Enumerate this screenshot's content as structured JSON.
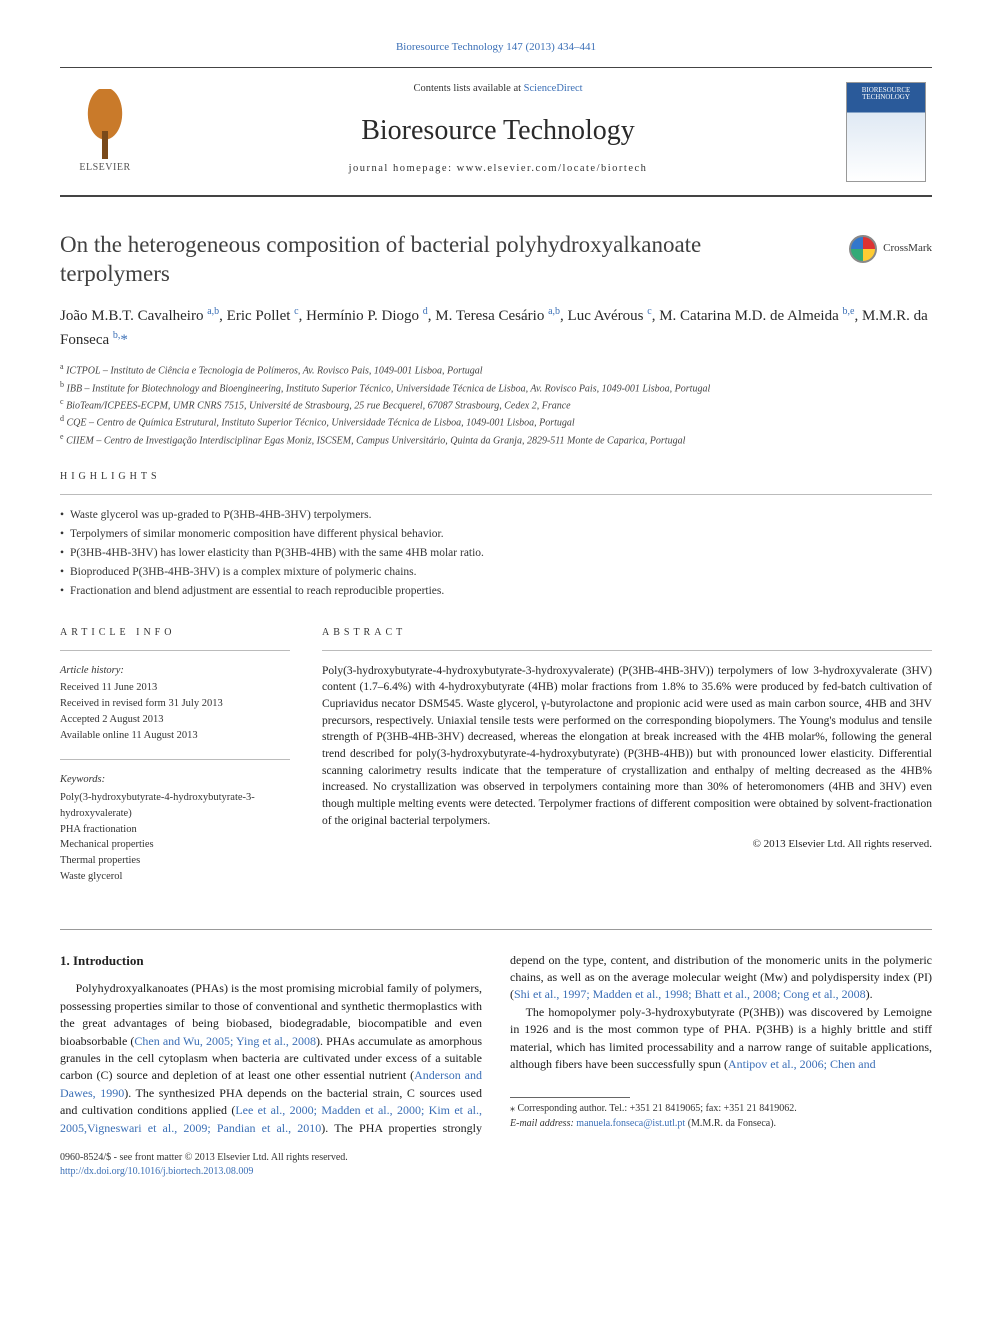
{
  "citation_line": "Bioresource Technology 147 (2013) 434–441",
  "masthead": {
    "contents_prefix": "Contents lists available at ",
    "contents_link": "ScienceDirect",
    "journal": "Bioresource Technology",
    "homepage_prefix": "journal homepage: ",
    "homepage_url": "www.elsevier.com/locate/biortech",
    "publisher_label": "ELSEVIER",
    "cover_label": "BIORESOURCE TECHNOLOGY"
  },
  "crossmark_label": "CrossMark",
  "title": "On the heterogeneous composition of bacterial polyhydroxyalkanoate terpolymers",
  "authors_html": "João M.B.T. Cavalheiro <sup>a,b</sup>, Eric Pollet <sup>c</sup>, Hermínio P. Diogo <sup>d</sup>, M. Teresa Cesário <sup>a,b</sup>, Luc Avérous <sup>c</sup>, M. Catarina M.D. de Almeida <sup>b,e</sup>, M.M.R. da Fonseca <sup>b,</sup><span class='corr'>*</span>",
  "affiliations": [
    {
      "sup": "a",
      "text": "ICTPOL – Instituto de Ciência e Tecnologia de Polímeros, Av. Rovisco Pais, 1049-001 Lisboa, Portugal"
    },
    {
      "sup": "b",
      "text": "IBB – Institute for Biotechnology and Bioengineering, Instituto Superior Técnico, Universidade Técnica de Lisboa, Av. Rovisco Pais, 1049-001 Lisboa, Portugal"
    },
    {
      "sup": "c",
      "text": "BioTeam/ICPEES-ECPM, UMR CNRS 7515, Université de Strasbourg, 25 rue Becquerel, 67087 Strasbourg, Cedex 2, France"
    },
    {
      "sup": "d",
      "text": "CQE – Centro de Química Estrutural, Instituto Superior Técnico, Universidade Técnica de Lisboa, 1049-001 Lisboa, Portugal"
    },
    {
      "sup": "e",
      "text": "CIIEM – Centro de Investigação Interdisciplinar Egas Moniz, ISCSEM, Campus Universitário, Quinta da Granja, 2829-511 Monte de Caparica, Portugal"
    }
  ],
  "highlights": {
    "label": "HIGHLIGHTS",
    "items": [
      "Waste glycerol was up-graded to P(3HB-4HB-3HV) terpolymers.",
      "Terpolymers of similar monomeric composition have different physical behavior.",
      "P(3HB-4HB-3HV) has lower elasticity than P(3HB-4HB) with the same 4HB molar ratio.",
      "Bioproduced P(3HB-4HB-3HV) is a complex mixture of polymeric chains.",
      "Fractionation and blend adjustment are essential to reach reproducible properties."
    ]
  },
  "article_info": {
    "label": "ARTICLE INFO",
    "history_head": "Article history:",
    "history": [
      "Received 11 June 2013",
      "Received in revised form 31 July 2013",
      "Accepted 2 August 2013",
      "Available online 11 August 2013"
    ],
    "keywords_head": "Keywords:",
    "keywords": [
      "Poly(3-hydroxybutyrate-4-hydroxybutyrate-3-hydroxyvalerate)",
      "PHA fractionation",
      "Mechanical properties",
      "Thermal properties",
      "Waste glycerol"
    ]
  },
  "abstract": {
    "label": "ABSTRACT",
    "text": "Poly(3-hydroxybutyrate-4-hydroxybutyrate-3-hydroxyvalerate) (P(3HB-4HB-3HV)) terpolymers of low 3-hydroxyvalerate (3HV) content (1.7–6.4%) with 4-hydroxybutyrate (4HB) molar fractions from 1.8% to 35.6% were produced by fed-batch cultivation of Cupriavidus necator DSM545. Waste glycerol, γ-butyrolactone and propionic acid were used as main carbon source, 4HB and 3HV precursors, respectively. Uniaxial tensile tests were performed on the corresponding biopolymers. The Young's modulus and tensile strength of P(3HB-4HB-3HV) decreased, whereas the elongation at break increased with the 4HB molar%, following the general trend described for poly(3-hydroxybutyrate-4-hydroxybutyrate) (P(3HB-4HB)) but with pronounced lower elasticity. Differential scanning calorimetry results indicate that the temperature of crystallization and enthalpy of melting decreased as the 4HB% increased. No crystallization was observed in terpolymers containing more than 30% of heteromonomers (4HB and 3HV) even though multiple melting events were detected. Terpolymer fractions of different composition were obtained by solvent-fractionation of the original bacterial terpolymers.",
    "copyright": "© 2013 Elsevier Ltd. All rights reserved."
  },
  "intro": {
    "heading": "1. Introduction",
    "p1_a": "Polyhydroxyalkanoates (PHAs) is the most promising microbial family of polymers, possessing properties similar to those of conventional and synthetic thermoplastics with the great advantages of being biobased, biodegradable, biocompatible and even bioabsorbable (",
    "p1_link1": "Chen and Wu, 2005; Ying et al., 2008",
    "p1_b": "). PHAs accumulate as amorphous granules in the cell cytoplasm when bacteria are cultivated under excess of a suitable carbon (C) source and depletion of at least one other essential nutrient (",
    "p1_link2": "Anderson and Dawes, 1990",
    "p1_c": "). The synthesized PHA depends on the bacterial strain, C sources used and cultivation conditions applied (",
    "p1_link3": "Lee et al., 2000; Madden et al., 2000; Kim et al., 2005,Vigneswari et al., 2009; Pandian et al., 2010",
    "p1_d": "). The PHA properties strongly depend on the type, content, and distribution of the monomeric units in the polymeric chains, as well as on the average molecular weight (Mᴡ) and polydispersity index (PI) (",
    "p1_link4": "Shi et al., 1997; Madden et al., 1998; Bhatt et al., 2008; Cong et al., 2008",
    "p1_e": ").",
    "p2_a": "The homopolymer poly-3-hydroxybutyrate (P(3HB)) was discovered by Lemoigne in 1926 and is the most common type of PHA. P(3HB) is a highly brittle and stiff material, which has limited processability and a narrow range of suitable applications, although fibers have been successfully spun (",
    "p2_link1": "Antipov et al., 2006; Chen and"
  },
  "footnote": {
    "corr_label": "⁎ Corresponding author. Tel.: +351 21 8419065; fax: +351 21 8419062.",
    "email_label": "E-mail address: ",
    "email": "manuela.fonseca@ist.utl.pt",
    "email_owner": " (M.M.R. da Fonseca)."
  },
  "footer": {
    "issn": "0960-8524/$ - see front matter © 2013 Elsevier Ltd. All rights reserved.",
    "doi": "http://dx.doi.org/10.1016/j.biortech.2013.08.009"
  },
  "colors": {
    "link": "#3b6fb6",
    "text": "#1a1a1a",
    "elsevier_orange": "#c97a2a",
    "cover_blue": "#2a5a9a"
  }
}
